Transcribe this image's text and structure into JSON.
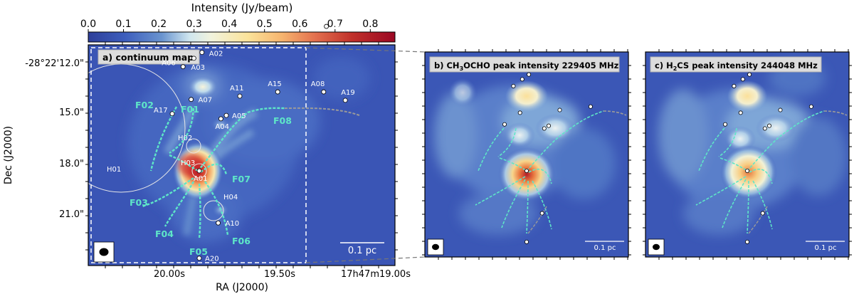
{
  "chart_data": [
    {
      "type": "heatmap",
      "panel_label": "a) continuum map",
      "colorbar": {
        "label": "Intensity (Jy/beam)",
        "range": [
          0.0,
          0.87
        ],
        "ticks": [
          "0.0",
          "0.1",
          "0.2",
          "0.3",
          "0.4",
          "0.5",
          "0.6",
          "0.7",
          "0.8"
        ]
      },
      "xlabel": "RA (J2000)",
      "ylabel": "Dec (J2000)",
      "xticks": [
        "20.00s",
        "19.50s",
        "17h47m19.00s"
      ],
      "yticks": [
        "-28°22'12.0\"",
        "15.0\"",
        "18.0\"",
        "21.0\""
      ],
      "scalebar": "0.1 pc",
      "sources": [
        {
          "name": "A01",
          "x": 0.0,
          "y": 0.0
        },
        {
          "name": "A02",
          "x": -0.05,
          "y": 7.05
        },
        {
          "name": "A03",
          "x": 0.1,
          "y": 6.7
        },
        {
          "name": "A04",
          "x": -0.4,
          "y": 3.1
        },
        {
          "name": "A05",
          "x": -0.5,
          "y": 3.3
        },
        {
          "name": "A06",
          "x": 0.3,
          "y": 6.2
        },
        {
          "name": "A07",
          "x": 0.15,
          "y": 4.25
        },
        {
          "name": "A08",
          "x": -2.3,
          "y": 4.7
        },
        {
          "name": "A10",
          "x": -0.35,
          "y": -3.1
        },
        {
          "name": "A11",
          "x": -0.75,
          "y": 4.45
        },
        {
          "name": "A12",
          "x": -2.35,
          "y": 8.6
        },
        {
          "name": "A15",
          "x": -1.45,
          "y": 4.7
        },
        {
          "name": "A17",
          "x": 0.5,
          "y": 3.4
        },
        {
          "name": "A19",
          "x": -2.7,
          "y": 4.2
        },
        {
          "name": "A20",
          "x": 0.0,
          "y": -5.2
        }
      ],
      "h_ii_regions": [
        "H01",
        "H02",
        "H03",
        "H04"
      ],
      "filaments": [
        "F01",
        "F02",
        "F03",
        "F04",
        "F05",
        "F06",
        "F07",
        "F08"
      ]
    },
    {
      "type": "heatmap",
      "panel_label_prefix": "b) CH",
      "panel_label_sub1": "3",
      "panel_label_mid": "OCHO peak intensity 229405 MHz",
      "scalebar": "0.1 pc"
    },
    {
      "type": "heatmap",
      "panel_label_prefix": "c) H",
      "panel_label_sub1": "2",
      "panel_label_mid": "CS peak intensity 244048 MHz",
      "scalebar": "0.1 pc"
    }
  ]
}
